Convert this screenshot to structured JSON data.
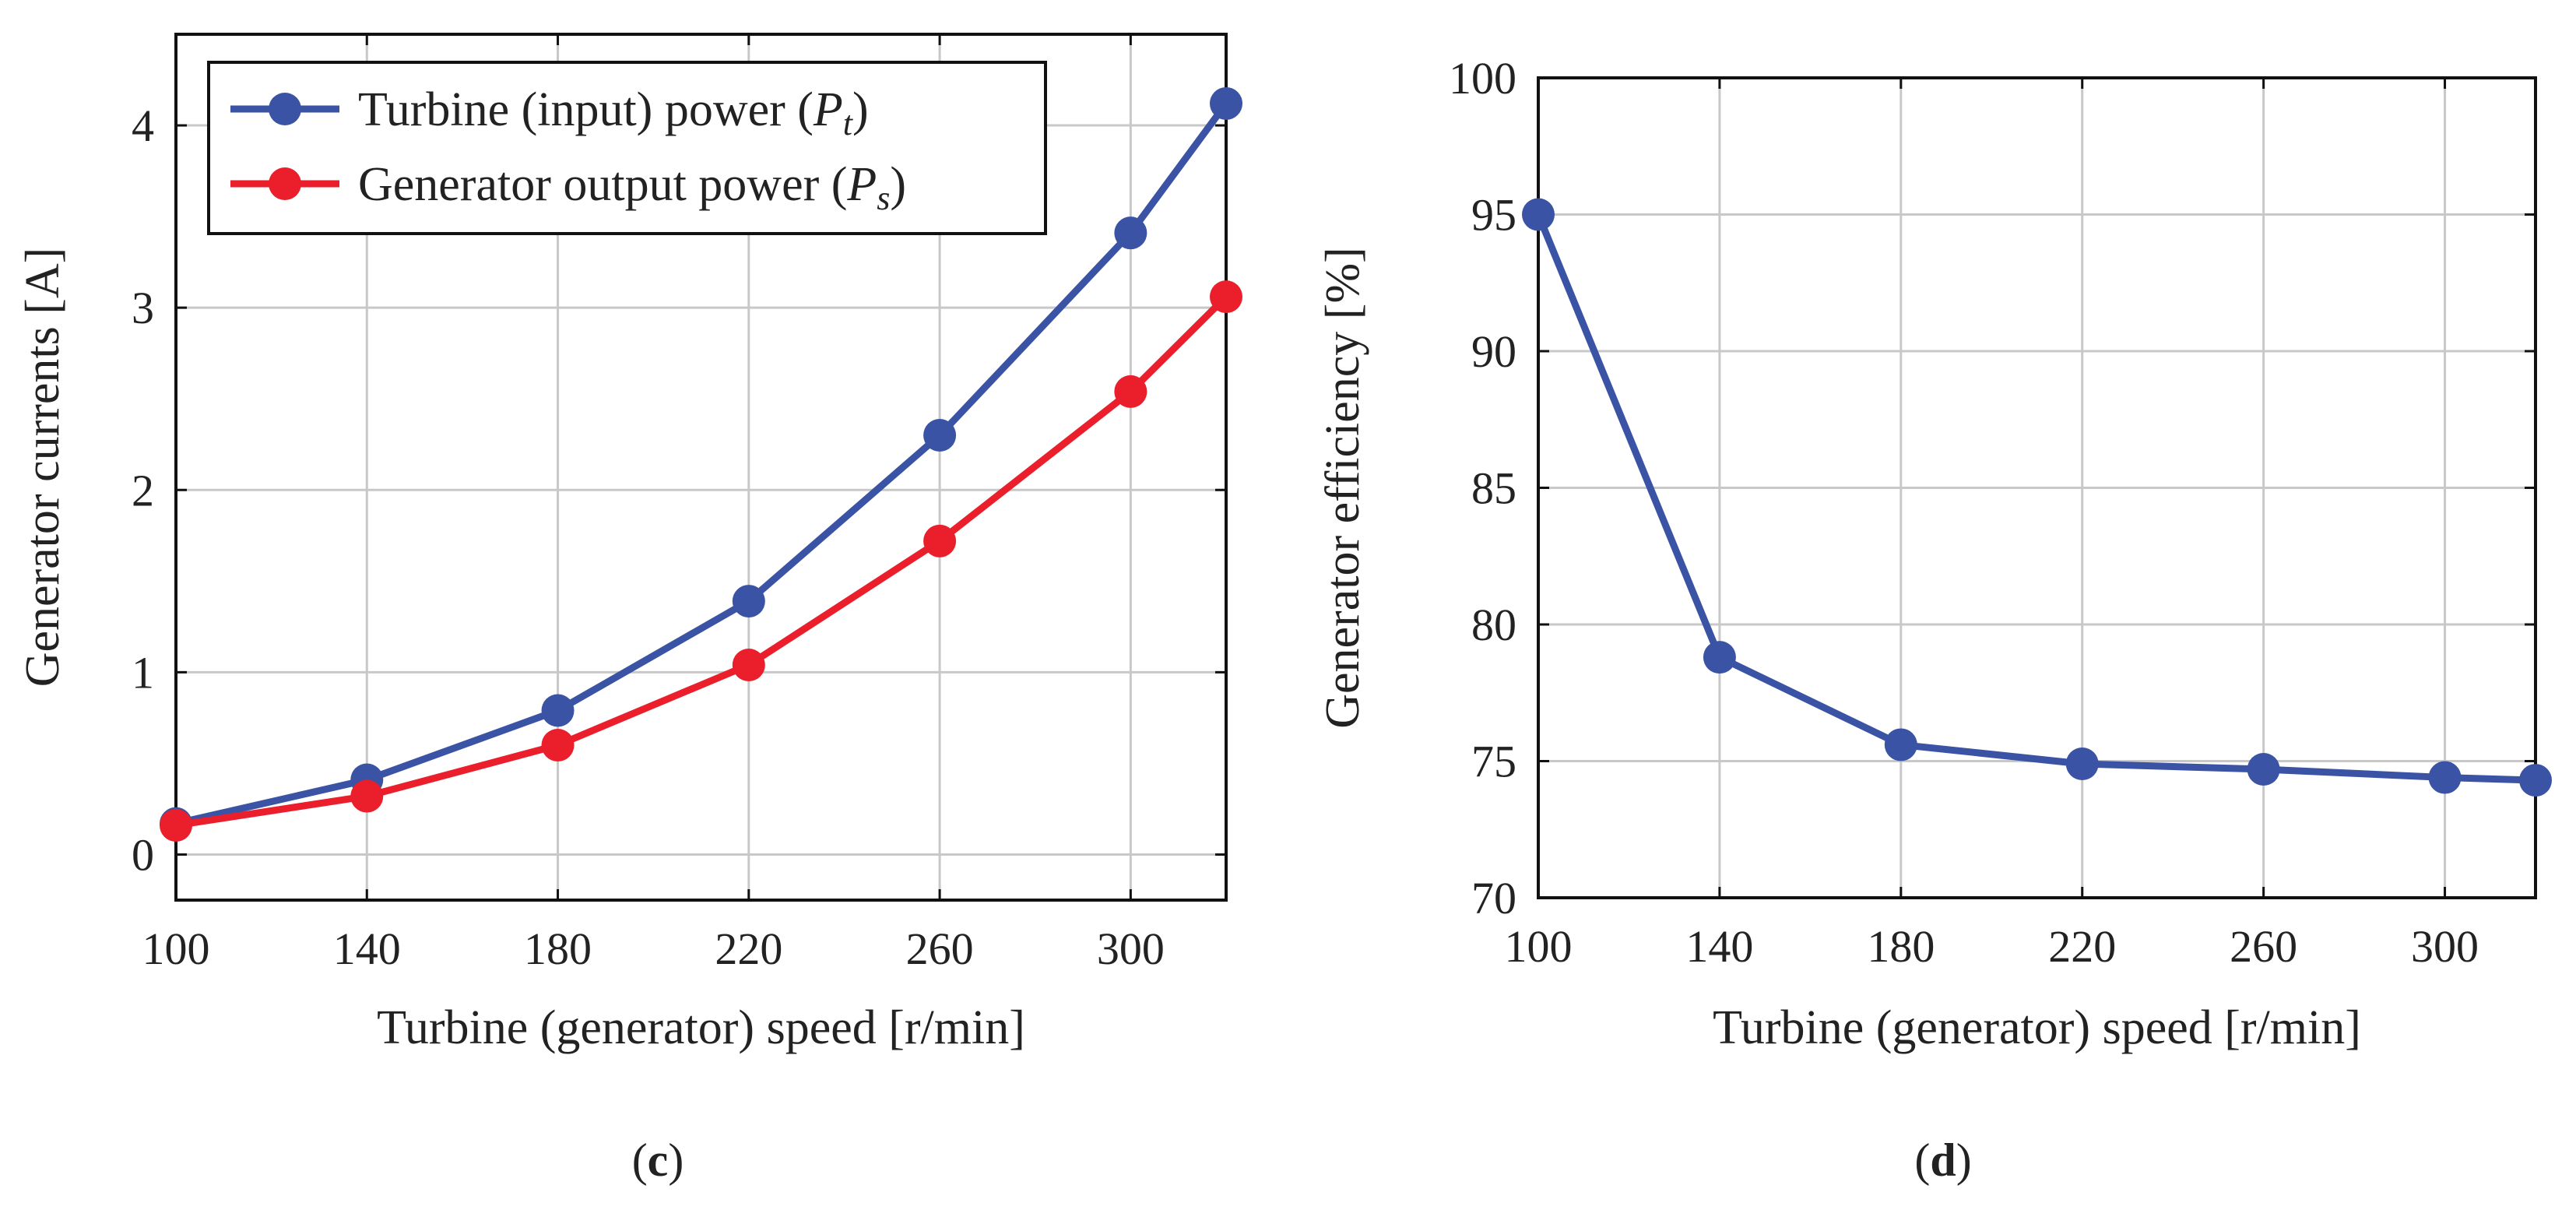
{
  "chart_data": [
    {
      "type": "line",
      "id": "c",
      "caption": "c",
      "xlabel": "Turbine (generator) speed [r/min]",
      "ylabel": "Generator currents [A]",
      "x": [
        100,
        140,
        180,
        220,
        260,
        300,
        320
      ],
      "xlim": [
        100,
        320
      ],
      "ylim": [
        -0.25,
        4.5
      ],
      "xticks": [
        100,
        140,
        180,
        220,
        260,
        300
      ],
      "yticks": [
        0,
        1,
        2,
        3,
        4
      ],
      "grid": true,
      "legend_position": "top-left",
      "series": [
        {
          "name": "Turbine (input) power (",
          "sym": "P",
          "sub": "t",
          "close": ")",
          "color": "#3a53a4",
          "values": [
            0.17,
            0.41,
            0.79,
            1.39,
            2.3,
            3.41,
            4.12
          ]
        },
        {
          "name": "Generator output power (",
          "sym": "P",
          "sub": "s",
          "close": ")",
          "color": "#ea1f2b",
          "values": [
            0.16,
            0.32,
            0.6,
            1.04,
            1.72,
            2.54,
            3.06
          ]
        }
      ]
    },
    {
      "type": "line",
      "id": "d",
      "caption": "d",
      "xlabel": "Turbine (generator) speed [r/min]",
      "ylabel": "Generator efficiency [%]",
      "x": [
        100,
        140,
        180,
        220,
        260,
        300,
        320
      ],
      "xlim": [
        100,
        320
      ],
      "ylim": [
        70,
        100
      ],
      "xticks": [
        100,
        140,
        180,
        220,
        260,
        300
      ],
      "yticks": [
        70,
        75,
        80,
        85,
        90,
        95,
        100
      ],
      "grid": true,
      "series": [
        {
          "name": "Generator efficiency",
          "color": "#3a53a4",
          "values": [
            95.0,
            78.8,
            75.6,
            74.9,
            74.7,
            74.4,
            74.3
          ]
        }
      ]
    }
  ]
}
